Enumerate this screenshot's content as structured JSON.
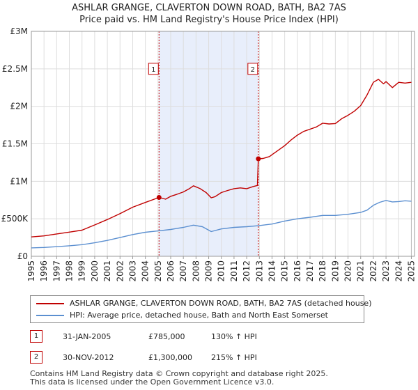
{
  "chart_data": {
    "type": "line",
    "title": "ASHLAR GRANGE, CLAVERTON DOWN ROAD, BATH, BA2 7AS",
    "subtitle": "Price paid vs. HM Land Registry's House Price Index (HPI)",
    "xlabel": "",
    "ylabel": "",
    "xlim": [
      1995,
      2025.25
    ],
    "ylim": [
      0,
      3000000
    ],
    "y_ticks": [
      0,
      500000,
      1000000,
      1500000,
      2000000,
      2500000,
      3000000
    ],
    "y_tick_labels": [
      "£0",
      "£500K",
      "£1M",
      "£1.5M",
      "£2M",
      "£2.5M",
      "£3M"
    ],
    "x_ticks": [
      "1995",
      "1996",
      "1997",
      "1998",
      "1999",
      "2000",
      "2001",
      "2002",
      "2003",
      "2004",
      "2005",
      "2006",
      "2007",
      "2008",
      "2009",
      "2010",
      "2011",
      "2012",
      "2013",
      "2014",
      "2015",
      "2016",
      "2017",
      "2018",
      "2019",
      "2020",
      "2021",
      "2022",
      "2023",
      "2024",
      "2025"
    ],
    "grid": true,
    "colors": {
      "property": "#c00000",
      "hpi": "#5b8fd0",
      "shade": "#e8eefb"
    },
    "series": [
      {
        "name": "ASHLAR GRANGE, CLAVERTON DOWN ROAD, BATH, BA2 7AS (detached house)",
        "x": [
          1995,
          1996,
          1997,
          1998,
          1999,
          2000,
          2001,
          2002,
          2003,
          2004,
          2005.08,
          2005.6,
          2006,
          2006.5,
          2007,
          2007.5,
          2007.8,
          2008.3,
          2008.8,
          2009.2,
          2009.5,
          2010,
          2010.5,
          2011,
          2011.5,
          2012,
          2012.5,
          2012.85,
          2012.92,
          2013.3,
          2013.8,
          2014,
          2014.5,
          2015,
          2015.5,
          2016,
          2016.5,
          2017,
          2017.5,
          2018,
          2018.5,
          2019,
          2019.5,
          2020,
          2020.5,
          2021,
          2021.5,
          2022,
          2022.4,
          2022.8,
          2023,
          2023.5,
          2024,
          2024.5,
          2025
        ],
        "values": [
          258000,
          272000,
          298000,
          322000,
          348000,
          418000,
          490000,
          568000,
          655000,
          718000,
          785000,
          762000,
          800000,
          828000,
          858000,
          905000,
          940000,
          905000,
          850000,
          780000,
          795000,
          850000,
          878000,
          902000,
          912000,
          902000,
          930000,
          945000,
          1300000,
          1305000,
          1330000,
          1355000,
          1415000,
          1475000,
          1550000,
          1615000,
          1665000,
          1695000,
          1725000,
          1775000,
          1765000,
          1770000,
          1835000,
          1880000,
          1935000,
          2010000,
          2150000,
          2320000,
          2360000,
          2300000,
          2330000,
          2250000,
          2320000,
          2310000,
          2320000
        ]
      },
      {
        "name": "HPI: Average price, detached house, Bath and North East Somerset",
        "x": [
          1995,
          1996,
          1997,
          1998,
          1999,
          2000,
          2001,
          2002,
          2003,
          2004,
          2005,
          2006,
          2007,
          2007.8,
          2008.5,
          2009.2,
          2010,
          2011,
          2012,
          2013,
          2014,
          2015,
          2016,
          2017,
          2018,
          2019,
          2020,
          2021,
          2021.5,
          2022,
          2022.5,
          2023,
          2023.5,
          2024,
          2024.5,
          2025
        ],
        "values": [
          112000,
          118000,
          128000,
          140000,
          155000,
          180000,
          212000,
          250000,
          290000,
          320000,
          338000,
          358000,
          385000,
          415000,
          395000,
          330000,
          365000,
          385000,
          395000,
          410000,
          430000,
          470000,
          500000,
          520000,
          545000,
          545000,
          560000,
          585000,
          615000,
          680000,
          720000,
          745000,
          725000,
          730000,
          740000,
          735000
        ]
      }
    ],
    "shaded_region": [
      2005.08,
      2012.92
    ],
    "markers": [
      {
        "id": "1",
        "x": 2005.08,
        "value": 785000
      },
      {
        "id": "2",
        "x": 2012.92,
        "value": 1300000
      }
    ]
  },
  "legend": {
    "property_label": "ASHLAR GRANGE, CLAVERTON DOWN ROAD, BATH, BA2 7AS (detached house)",
    "hpi_label": "HPI: Average price, detached house, Bath and North East Somerset"
  },
  "sales": [
    {
      "id": "1",
      "date": "31-JAN-2005",
      "price": "£785,000",
      "hpi_change": "130% ↑ HPI"
    },
    {
      "id": "2",
      "date": "30-NOV-2012",
      "price": "£1,300,000",
      "hpi_change": "215% ↑ HPI"
    }
  ],
  "footer": {
    "line1": "Contains HM Land Registry data © Crown copyright and database right 2025.",
    "line2": "This data is licensed under the Open Government Licence v3.0."
  }
}
